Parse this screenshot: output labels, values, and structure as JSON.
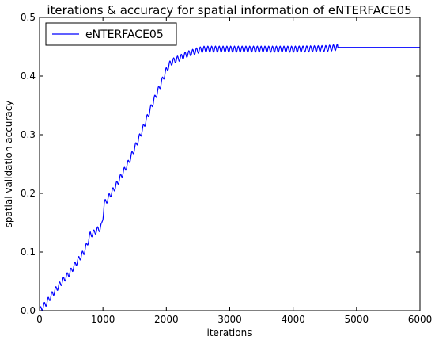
{
  "chart_data": {
    "type": "line",
    "title": "iterations & accuracy for spatial information of eNTERFACE05",
    "xlabel": "iterations",
    "ylabel": "spatial validation accuracy",
    "xlim": [
      0,
      6000
    ],
    "ylim": [
      0,
      0.5
    ],
    "xticks": [
      "0",
      "1000",
      "2000",
      "3000",
      "4000",
      "5000",
      "6000"
    ],
    "yticks": [
      "0.0",
      "0.1",
      "0.2",
      "0.3",
      "0.4",
      "0.5"
    ],
    "grid": false,
    "legend": {
      "position": "top-left",
      "entries": [
        "eNTERFACE05"
      ]
    },
    "series": [
      {
        "name": "eNTERFACE05",
        "color": "#0000ff",
        "x": [
          0,
          100,
          200,
          300,
          400,
          500,
          600,
          700,
          750,
          800,
          850,
          900,
          950,
          980,
          1000,
          1020,
          1050,
          1100,
          1200,
          1300,
          1400,
          1500,
          1600,
          1700,
          1800,
          1900,
          2000,
          2050,
          2100,
          2150,
          2200,
          2300,
          2400,
          2500,
          2600,
          3000,
          3500,
          4000,
          4500,
          4700,
          5000,
          5500,
          6000
        ],
        "values": [
          0.0,
          0.012,
          0.028,
          0.042,
          0.055,
          0.068,
          0.085,
          0.1,
          0.113,
          0.13,
          0.132,
          0.137,
          0.14,
          0.145,
          0.16,
          0.183,
          0.186,
          0.195,
          0.212,
          0.232,
          0.252,
          0.277,
          0.302,
          0.33,
          0.358,
          0.383,
          0.41,
          0.42,
          0.425,
          0.428,
          0.43,
          0.436,
          0.44,
          0.444,
          0.446,
          0.446,
          0.446,
          0.446,
          0.447,
          0.449,
          0.449,
          0.449,
          0.449
        ],
        "oscillation": {
          "amplitude": 0.005,
          "period": 60,
          "from": 0,
          "to": 4700
        }
      }
    ]
  }
}
